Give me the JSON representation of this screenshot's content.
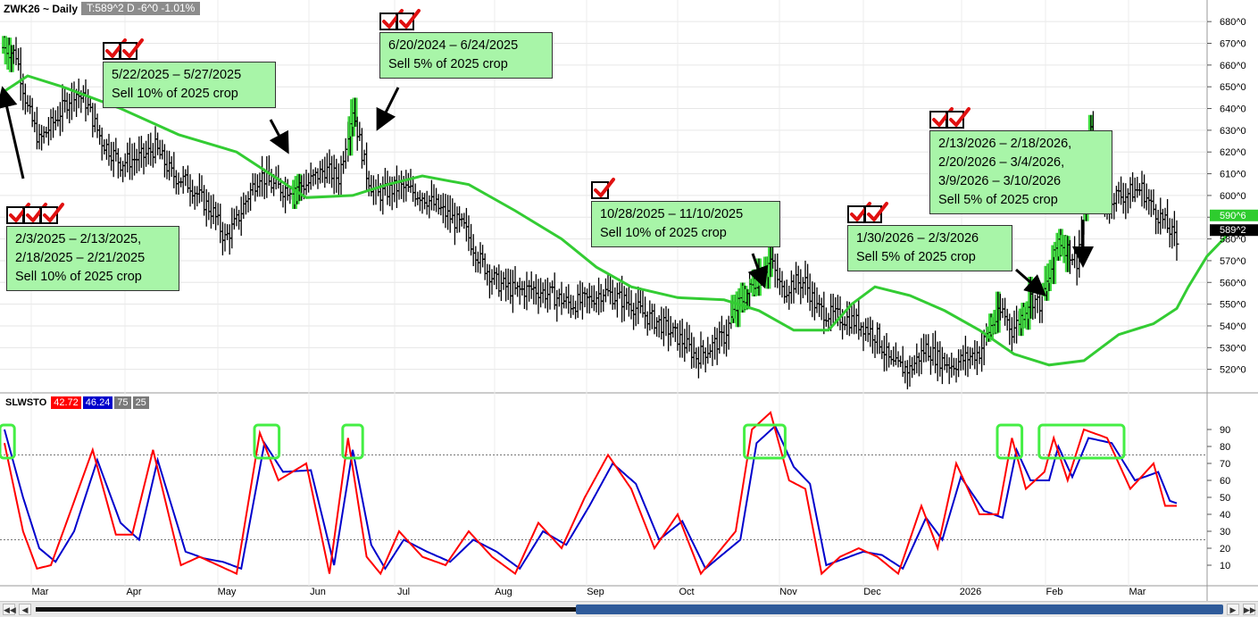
{
  "header": {
    "symbol": "ZWK26 ~ Daily",
    "quote": "T:589^2 D  -6^0  -1.01%"
  },
  "indicator": {
    "name": "SLWSTO",
    "k_value": "42.72",
    "d_value": "46.24",
    "upper": "75",
    "lower": "25",
    "k_color": "#ff0000",
    "d_color": "#0000cc"
  },
  "last_price_labels": {
    "ask": "590^6",
    "last": "589^2"
  },
  "annotations": [
    {
      "id": "feb",
      "lines": [
        "2/3/2025 – 2/13/2025,",
        "2/18/2025 – 2/21/2025",
        "Sell 10% of 2025 crop"
      ],
      "checks": 3
    },
    {
      "id": "may",
      "lines": [
        "5/22/2025 – 5/27/2025",
        "Sell 10% of 2025 crop"
      ],
      "checks": 2
    },
    {
      "id": "jun",
      "lines": [
        "6/20/2024 – 6/24/2025",
        "Sell 5% of 2025 crop"
      ],
      "checks": 2
    },
    {
      "id": "oct",
      "lines": [
        "10/28/2025 – 11/10/2025",
        "Sell 10% of 2025 crop"
      ],
      "checks": 1
    },
    {
      "id": "jan",
      "lines": [
        "1/30/2026 – 2/3/2026",
        "Sell 5% of 2025 crop"
      ],
      "checks": 2
    },
    {
      "id": "febmar",
      "lines": [
        "2/13/2026 – 2/18/2026,",
        "2/20/2026 – 3/4/2026,",
        "3/9/2026 – 3/10/2026",
        "Sell 5% of 2025 crop"
      ],
      "checks": 2
    }
  ],
  "chart_data": {
    "type": "bar",
    "subtype": "ohlc",
    "price_axis": {
      "range": [
        510,
        685
      ],
      "ticks": [
        520,
        530,
        540,
        550,
        560,
        570,
        580,
        590,
        600,
        610,
        620,
        630,
        640,
        650,
        660,
        670,
        680
      ],
      "tick_labels": [
        "520^0",
        "530^0",
        "540^0",
        "550^0",
        "560^0",
        "570^0",
        "580^0",
        "590^0",
        "600^0",
        "610^0",
        "620^0",
        "630^0",
        "640^0",
        "650^0",
        "660^0",
        "670^0",
        "680^0"
      ]
    },
    "x_axis": {
      "labels": [
        "Mar",
        "Apr",
        "May",
        "Jun",
        "Jul",
        "Aug",
        "Sep",
        "Oct",
        "Nov",
        "Dec",
        "2026",
        "Feb",
        "Mar"
      ]
    },
    "moving_average": {
      "color": "#33cc33",
      "points": [
        [
          0,
          648
        ],
        [
          10,
          655
        ],
        [
          25,
          650
        ],
        [
          50,
          640
        ],
        [
          75,
          628
        ],
        [
          100,
          620
        ],
        [
          120,
          606
        ],
        [
          130,
          599
        ],
        [
          150,
          600
        ],
        [
          165,
          605
        ],
        [
          180,
          609
        ],
        [
          200,
          605
        ],
        [
          220,
          593
        ],
        [
          240,
          580
        ],
        [
          255,
          567
        ],
        [
          270,
          558
        ],
        [
          290,
          553
        ],
        [
          310,
          552
        ],
        [
          325,
          547
        ],
        [
          340,
          538
        ],
        [
          355,
          538
        ],
        [
          365,
          550
        ],
        [
          375,
          558
        ],
        [
          390,
          554
        ],
        [
          405,
          547
        ],
        [
          420,
          538
        ],
        [
          435,
          527
        ],
        [
          450,
          522
        ],
        [
          465,
          524
        ],
        [
          480,
          536
        ],
        [
          495,
          541
        ],
        [
          505,
          548
        ],
        [
          510,
          558
        ],
        [
          518,
          572
        ],
        [
          527,
          582
        ],
        [
          535,
          586
        ]
      ]
    },
    "price_anchors": [
      [
        0,
        668
      ],
      [
        5,
        665
      ],
      [
        10,
        640
      ],
      [
        15,
        625
      ],
      [
        22,
        635
      ],
      [
        30,
        648
      ],
      [
        35,
        643
      ],
      [
        42,
        625
      ],
      [
        50,
        615
      ],
      [
        60,
        618
      ],
      [
        65,
        622
      ],
      [
        72,
        610
      ],
      [
        80,
        605
      ],
      [
        85,
        598
      ],
      [
        90,
        592
      ],
      [
        95,
        580
      ],
      [
        100,
        588
      ],
      [
        105,
        600
      ],
      [
        110,
        610
      ],
      [
        115,
        605
      ],
      [
        120,
        603
      ],
      [
        130,
        605
      ],
      [
        138,
        612
      ],
      [
        144,
        608
      ],
      [
        148,
        630
      ],
      [
        150,
        640
      ],
      [
        153,
        625
      ],
      [
        156,
        610
      ],
      [
        160,
        600
      ],
      [
        170,
        604
      ],
      [
        180,
        600
      ],
      [
        186,
        595
      ],
      [
        192,
        590
      ],
      [
        198,
        585
      ],
      [
        205,
        570
      ],
      [
        212,
        560
      ],
      [
        220,
        556
      ],
      [
        228,
        557
      ],
      [
        236,
        554
      ],
      [
        244,
        550
      ],
      [
        252,
        552
      ],
      [
        258,
        556
      ],
      [
        264,
        553
      ],
      [
        270,
        550
      ],
      [
        276,
        545
      ],
      [
        284,
        540
      ],
      [
        292,
        533
      ],
      [
        298,
        526
      ],
      [
        304,
        530
      ],
      [
        310,
        535
      ],
      [
        315,
        548
      ],
      [
        320,
        555
      ],
      [
        325,
        563
      ],
      [
        330,
        570
      ],
      [
        335,
        556
      ],
      [
        340,
        560
      ],
      [
        345,
        560
      ],
      [
        350,
        548
      ],
      [
        356,
        545
      ],
      [
        364,
        543
      ],
      [
        370,
        540
      ],
      [
        376,
        535
      ],
      [
        382,
        522
      ],
      [
        390,
        520
      ],
      [
        397,
        530
      ],
      [
        402,
        525
      ],
      [
        408,
        522
      ],
      [
        414,
        525
      ],
      [
        420,
        528
      ],
      [
        425,
        540
      ],
      [
        430,
        547
      ],
      [
        434,
        538
      ],
      [
        438,
        544
      ],
      [
        442,
        553
      ],
      [
        446,
        550
      ],
      [
        450,
        562
      ],
      [
        454,
        580
      ],
      [
        458,
        575
      ],
      [
        462,
        570
      ],
      [
        466,
        600
      ],
      [
        468,
        630
      ],
      [
        470,
        605
      ],
      [
        474,
        595
      ],
      [
        478,
        600
      ],
      [
        482,
        600
      ],
      [
        486,
        602
      ],
      [
        490,
        603
      ],
      [
        494,
        595
      ],
      [
        498,
        590
      ],
      [
        502,
        584
      ],
      [
        505,
        578
      ]
    ],
    "highlight_bar_ranges": [
      [
        0,
        3
      ],
      [
        125,
        127
      ],
      [
        149,
        151
      ],
      [
        314,
        320
      ],
      [
        322,
        330
      ],
      [
        424,
        428
      ],
      [
        438,
        442
      ],
      [
        448,
        456
      ],
      [
        457,
        458
      ],
      [
        466,
        468
      ]
    ],
    "stochastic": {
      "range": [
        0,
        100
      ],
      "ticks": [
        10,
        20,
        30,
        40,
        50,
        60,
        70,
        80,
        90
      ],
      "overbought": 75,
      "oversold": 25,
      "k_anchors": [
        [
          0,
          82
        ],
        [
          8,
          30
        ],
        [
          14,
          8
        ],
        [
          20,
          10
        ],
        [
          28,
          40
        ],
        [
          38,
          78
        ],
        [
          48,
          28
        ],
        [
          55,
          28
        ],
        [
          64,
          78
        ],
        [
          76,
          10
        ],
        [
          84,
          15
        ],
        [
          92,
          10
        ],
        [
          100,
          5
        ],
        [
          110,
          88
        ],
        [
          118,
          60
        ],
        [
          130,
          70
        ],
        [
          140,
          5
        ],
        [
          148,
          85
        ],
        [
          156,
          15
        ],
        [
          162,
          5
        ],
        [
          170,
          30
        ],
        [
          180,
          15
        ],
        [
          190,
          10
        ],
        [
          200,
          30
        ],
        [
          210,
          15
        ],
        [
          220,
          5
        ],
        [
          230,
          35
        ],
        [
          240,
          20
        ],
        [
          250,
          50
        ],
        [
          260,
          75
        ],
        [
          270,
          55
        ],
        [
          280,
          20
        ],
        [
          290,
          40
        ],
        [
          300,
          5
        ],
        [
          315,
          30
        ],
        [
          322,
          90
        ],
        [
          330,
          100
        ],
        [
          338,
          60
        ],
        [
          345,
          55
        ],
        [
          352,
          5
        ],
        [
          360,
          15
        ],
        [
          368,
          20
        ],
        [
          376,
          15
        ],
        [
          385,
          5
        ],
        [
          395,
          45
        ],
        [
          402,
          20
        ],
        [
          410,
          70
        ],
        [
          420,
          40
        ],
        [
          428,
          40
        ],
        [
          434,
          85
        ],
        [
          440,
          55
        ],
        [
          448,
          65
        ],
        [
          452,
          85
        ],
        [
          458,
          60
        ],
        [
          465,
          90
        ],
        [
          475,
          85
        ],
        [
          485,
          55
        ],
        [
          495,
          70
        ],
        [
          500,
          45
        ],
        [
          510,
          45
        ]
      ],
      "d_anchors": [
        [
          0,
          90
        ],
        [
          8,
          50
        ],
        [
          15,
          20
        ],
        [
          22,
          12
        ],
        [
          30,
          30
        ],
        [
          40,
          72
        ],
        [
          50,
          35
        ],
        [
          58,
          25
        ],
        [
          66,
          72
        ],
        [
          78,
          18
        ],
        [
          86,
          14
        ],
        [
          94,
          12
        ],
        [
          102,
          8
        ],
        [
          112,
          82
        ],
        [
          120,
          65
        ],
        [
          132,
          66
        ],
        [
          142,
          10
        ],
        [
          150,
          78
        ],
        [
          158,
          22
        ],
        [
          164,
          8
        ],
        [
          172,
          25
        ],
        [
          182,
          18
        ],
        [
          192,
          12
        ],
        [
          202,
          25
        ],
        [
          212,
          18
        ],
        [
          222,
          8
        ],
        [
          232,
          30
        ],
        [
          242,
          22
        ],
        [
          252,
          45
        ],
        [
          262,
          70
        ],
        [
          272,
          58
        ],
        [
          282,
          25
        ],
        [
          292,
          36
        ],
        [
          302,
          8
        ],
        [
          317,
          25
        ],
        [
          324,
          82
        ],
        [
          332,
          92
        ],
        [
          340,
          68
        ],
        [
          347,
          58
        ],
        [
          354,
          10
        ],
        [
          362,
          14
        ],
        [
          370,
          18
        ],
        [
          378,
          16
        ],
        [
          387,
          8
        ],
        [
          397,
          38
        ],
        [
          404,
          25
        ],
        [
          412,
          62
        ],
        [
          422,
          42
        ],
        [
          430,
          38
        ],
        [
          436,
          78
        ],
        [
          442,
          60
        ],
        [
          450,
          60
        ],
        [
          454,
          80
        ],
        [
          460,
          62
        ],
        [
          467,
          85
        ],
        [
          477,
          82
        ],
        [
          487,
          60
        ],
        [
          497,
          65
        ],
        [
          502,
          48
        ],
        [
          510,
          44
        ]
      ],
      "boxes": [
        [
          0,
          2
        ],
        [
          110,
          116
        ],
        [
          148,
          152
        ],
        [
          321,
          334
        ],
        [
          430,
          436
        ],
        [
          448,
          480
        ]
      ]
    }
  }
}
